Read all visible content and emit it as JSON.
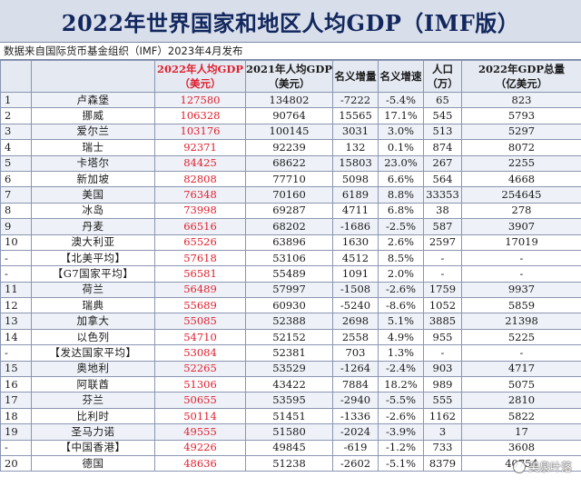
{
  "title": "2022年世界国家和地区人均GDP（IMF版）",
  "source": "数据来自国际货币基金组织（IMF）2023年4月发布",
  "headers": [
    {
      "l1": "",
      "l2": "",
      "hl": false
    },
    {
      "l1": "",
      "l2": "",
      "hl": false
    },
    {
      "l1": "2022年人均GDP",
      "l2": "（美元）",
      "hl": true
    },
    {
      "l1": "2021年人均GDP",
      "l2": "（美元）",
      "hl": false
    },
    {
      "l1": "名义增量",
      "l2": "",
      "hl": false
    },
    {
      "l1": "名义增速",
      "l2": "",
      "hl": false
    },
    {
      "l1": "人口",
      "l2": "（万）",
      "hl": false
    },
    {
      "l1": "2022年GDP总量",
      "l2": "（亿美元）",
      "hl": false
    }
  ],
  "rows": [
    {
      "rank": "1",
      "name": "卢森堡",
      "gdp22": "127580",
      "gdp21": "134802",
      "inc": "-7222",
      "rate": "-5.4%",
      "pop": "65",
      "total": "823",
      "avg": false
    },
    {
      "rank": "2",
      "name": "挪威",
      "gdp22": "106328",
      "gdp21": "90764",
      "inc": "15565",
      "rate": "17.1%",
      "pop": "545",
      "total": "5793",
      "avg": false
    },
    {
      "rank": "3",
      "name": "爱尔兰",
      "gdp22": "103176",
      "gdp21": "100145",
      "inc": "3031",
      "rate": "3.0%",
      "pop": "513",
      "total": "5297",
      "avg": false
    },
    {
      "rank": "4",
      "name": "瑞士",
      "gdp22": "92371",
      "gdp21": "92239",
      "inc": "132",
      "rate": "0.1%",
      "pop": "874",
      "total": "8072",
      "avg": false
    },
    {
      "rank": "5",
      "name": "卡塔尔",
      "gdp22": "84425",
      "gdp21": "68622",
      "inc": "15803",
      "rate": "23.0%",
      "pop": "267",
      "total": "2255",
      "avg": false
    },
    {
      "rank": "6",
      "name": "新加坡",
      "gdp22": "82808",
      "gdp21": "77710",
      "inc": "5098",
      "rate": "6.6%",
      "pop": "564",
      "total": "4668",
      "avg": false
    },
    {
      "rank": "7",
      "name": "美国",
      "gdp22": "76348",
      "gdp21": "70160",
      "inc": "6189",
      "rate": "8.8%",
      "pop": "33353",
      "total": "254645",
      "avg": false
    },
    {
      "rank": "8",
      "name": "冰岛",
      "gdp22": "73998",
      "gdp21": "69287",
      "inc": "4711",
      "rate": "6.8%",
      "pop": "38",
      "total": "278",
      "avg": false
    },
    {
      "rank": "9",
      "name": "丹麦",
      "gdp22": "66516",
      "gdp21": "68202",
      "inc": "-1686",
      "rate": "-2.5%",
      "pop": "587",
      "total": "3907",
      "avg": false
    },
    {
      "rank": "10",
      "name": "澳大利亚",
      "gdp22": "65526",
      "gdp21": "63896",
      "inc": "1630",
      "rate": "2.6%",
      "pop": "2597",
      "total": "17019",
      "avg": false
    },
    {
      "rank": "-",
      "name": "【北美平均】",
      "gdp22": "57618",
      "gdp21": "53106",
      "inc": "4512",
      "rate": "8.5%",
      "pop": "-",
      "total": "-",
      "avg": true
    },
    {
      "rank": "-",
      "name": "【G7国家平均】",
      "gdp22": "56581",
      "gdp21": "55489",
      "inc": "1091",
      "rate": "2.0%",
      "pop": "-",
      "total": "-",
      "avg": true
    },
    {
      "rank": "11",
      "name": "荷兰",
      "gdp22": "56489",
      "gdp21": "57997",
      "inc": "-1508",
      "rate": "-2.6%",
      "pop": "1759",
      "total": "9937",
      "avg": false
    },
    {
      "rank": "12",
      "name": "瑞典",
      "gdp22": "55689",
      "gdp21": "60930",
      "inc": "-5240",
      "rate": "-8.6%",
      "pop": "1052",
      "total": "5859",
      "avg": false
    },
    {
      "rank": "13",
      "name": "加拿大",
      "gdp22": "55085",
      "gdp21": "52388",
      "inc": "2698",
      "rate": "5.1%",
      "pop": "3885",
      "total": "21398",
      "avg": false
    },
    {
      "rank": "14",
      "name": "以色列",
      "gdp22": "54710",
      "gdp21": "52152",
      "inc": "2558",
      "rate": "4.9%",
      "pop": "955",
      "total": "5225",
      "avg": false
    },
    {
      "rank": "-",
      "name": "【发达国家平均】",
      "gdp22": "53084",
      "gdp21": "52381",
      "inc": "703",
      "rate": "1.3%",
      "pop": "-",
      "total": "-",
      "avg": true
    },
    {
      "rank": "15",
      "name": "奥地利",
      "gdp22": "52265",
      "gdp21": "53529",
      "inc": "-1264",
      "rate": "-2.4%",
      "pop": "903",
      "total": "4717",
      "avg": false
    },
    {
      "rank": "16",
      "name": "阿联酋",
      "gdp22": "51306",
      "gdp21": "43422",
      "inc": "7884",
      "rate": "18.2%",
      "pop": "989",
      "total": "5075",
      "avg": false
    },
    {
      "rank": "17",
      "name": "芬兰",
      "gdp22": "50655",
      "gdp21": "53595",
      "inc": "-2940",
      "rate": "-5.5%",
      "pop": "555",
      "total": "2810",
      "avg": false
    },
    {
      "rank": "18",
      "name": "比利时",
      "gdp22": "50114",
      "gdp21": "51451",
      "inc": "-1336",
      "rate": "-2.6%",
      "pop": "1162",
      "total": "5822",
      "avg": false
    },
    {
      "rank": "19",
      "name": "圣马力诺",
      "gdp22": "49555",
      "gdp21": "51580",
      "inc": "-2024",
      "rate": "-3.9%",
      "pop": "3",
      "total": "17",
      "avg": false
    },
    {
      "rank": "-",
      "name": "【中国香港】",
      "gdp22": "49226",
      "gdp21": "49845",
      "inc": "-619",
      "rate": "-1.2%",
      "pop": "733",
      "total": "3608",
      "avg": true
    },
    {
      "rank": "20",
      "name": "德国",
      "gdp22": "48636",
      "gdp21": "51238",
      "inc": "-2602",
      "rate": "-5.1%",
      "pop": "8379",
      "total": "40754",
      "avg": false
    }
  ],
  "watermark": "美泉叶落",
  "watermark_icon": "watermark-logo-icon",
  "accent_color": "#e0202e"
}
